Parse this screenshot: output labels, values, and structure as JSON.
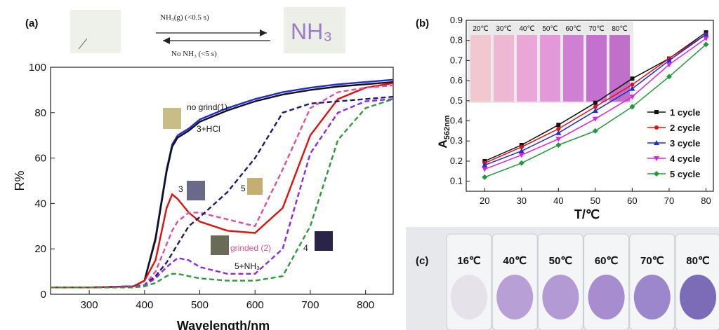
{
  "panels": {
    "a": {
      "label": "(a)",
      "reaction": {
        "forward": "NH₃(g) (<0.5 s)",
        "backward": "No NH₃ (<5 s)",
        "paper_text": "NH₃"
      },
      "chart_data": {
        "type": "line",
        "xlabel": "Wavelength/nm",
        "ylabel": "R%",
        "xlim": [
          230,
          850
        ],
        "ylim": [
          0,
          100
        ],
        "x_ticks": [
          300,
          400,
          500,
          600,
          700,
          800
        ],
        "y_ticks": [
          0,
          20,
          40,
          60,
          80,
          100
        ],
        "x": [
          230,
          300,
          380,
          400,
          420,
          440,
          450,
          460,
          480,
          500,
          550,
          600,
          650,
          700,
          750,
          800,
          850
        ],
        "series": [
          {
            "name": "no grind(1)",
            "color": "#1f2bd6",
            "dash": "solid",
            "values": [
              3,
              3,
              3.5,
              6,
              25,
              55,
              66,
              70,
              73,
              77,
              82,
              86,
              89,
              91,
              92.5,
              93.5,
              94.5
            ]
          },
          {
            "name": "3+HCl",
            "color": "#111111",
            "dash": "solid",
            "values": [
              3,
              3,
              3.5,
              6,
              24,
              54,
              65,
              69,
              72,
              76,
              81,
              85,
              88,
              90,
              91.5,
              92.5,
              93.5
            ]
          },
          {
            "name": "3",
            "color": "#e01010",
            "dash": "solid",
            "values": [
              3,
              3,
              3.5,
              6,
              15,
              38,
              44,
              42,
              36,
              32,
              28,
              27,
              38,
              70,
              86,
              91,
              93
            ]
          },
          {
            "name": "grinded (2)",
            "color": "#e0509a",
            "dash": "dashed",
            "values": [
              3,
              3,
              3.5,
              4,
              10,
              22,
              28,
              32,
              36,
              36,
              33,
              30,
              55,
              82,
              89,
              91,
              92
            ]
          },
          {
            "name": "5",
            "color": "#1a1a6e",
            "dash": "dashed",
            "values": [
              3,
              3,
              3.5,
              4,
              8,
              14,
              18,
              22,
              30,
              34,
              45,
              60,
              80,
              84,
              85,
              86,
              87
            ]
          },
          {
            "name": "5+NH₃",
            "color": "#8a2be2",
            "dash": "dashed",
            "values": [
              3,
              3,
              3.5,
              4,
              7,
              12,
              14,
              16,
              15,
              12,
              9,
              9,
              20,
              62,
              80,
              85,
              86
            ]
          },
          {
            "name": "4",
            "color": "#2e9a3a",
            "dash": "dashed",
            "values": [
              3,
              3,
              3,
              3.5,
              5,
              8,
              9,
              9,
              8,
              7,
              6,
              6,
              8,
              30,
              68,
              82,
              86
            ]
          }
        ],
        "annotations": [
          {
            "text": "no grind(1)",
            "color": "#111111"
          },
          {
            "text": "3+HCl",
            "color": "#111111"
          },
          {
            "text": "3",
            "color": "#111111"
          },
          {
            "text": "5",
            "color": "#111111"
          },
          {
            "text": "grinded (2)",
            "color": "#e0509a"
          },
          {
            "text": "4",
            "color": "#111111"
          },
          {
            "text": "5+NH₃",
            "color": "#111111"
          }
        ]
      }
    },
    "b": {
      "label": "(b)",
      "inset_labels": [
        "20℃",
        "30℃",
        "40℃",
        "50℃",
        "60℃",
        "70℃",
        "80℃"
      ],
      "inset_colors": [
        "#f1c8d0",
        "#efb8d2",
        "#eaa6d6",
        "#e398d8",
        "#cf80d2",
        "#c470d0",
        "#c070c8"
      ],
      "chart_data": {
        "type": "line",
        "xlabel": "T/℃",
        "ylabel": "A",
        "ylabel_sub": "562nm",
        "xlim": [
          15,
          82
        ],
        "ylim": [
          0.05,
          0.9
        ],
        "x_ticks": [
          20,
          30,
          40,
          50,
          60,
          70,
          80
        ],
        "y_ticks": [
          0.1,
          0.2,
          0.3,
          0.4,
          0.5,
          0.6,
          0.7,
          0.8,
          0.9
        ],
        "legend_position": "right",
        "x": [
          20,
          30,
          40,
          50,
          60,
          70,
          80
        ],
        "series": [
          {
            "name": "1 cycle",
            "color": "#111111",
            "marker": "square",
            "values": [
              0.2,
              0.28,
              0.38,
              0.49,
              0.61,
              0.71,
              0.84
            ]
          },
          {
            "name": "2 cycle",
            "color": "#e01010",
            "marker": "circle",
            "values": [
              0.19,
              0.27,
              0.36,
              0.47,
              0.58,
              0.71,
              0.83
            ]
          },
          {
            "name": "3 cycle",
            "color": "#1f2bd6",
            "marker": "triangle",
            "values": [
              0.18,
              0.25,
              0.34,
              0.45,
              0.56,
              0.7,
              0.83
            ]
          },
          {
            "name": "4 cycle",
            "color": "#e020e0",
            "marker": "triangle-down",
            "values": [
              0.16,
              0.23,
              0.31,
              0.41,
              0.52,
              0.68,
              0.81
            ]
          },
          {
            "name": "5 cycle",
            "color": "#1f9a3a",
            "marker": "diamond",
            "values": [
              0.12,
              0.19,
              0.28,
              0.35,
              0.47,
              0.62,
              0.78
            ]
          }
        ]
      }
    },
    "c": {
      "label": "(c)",
      "vials": [
        {
          "temp": "16℃",
          "color": "#e6e2ea"
        },
        {
          "temp": "40℃",
          "color": "#b8a0d6"
        },
        {
          "temp": "50℃",
          "color": "#b49ad4"
        },
        {
          "temp": "60℃",
          "color": "#a88cd0"
        },
        {
          "temp": "70℃",
          "color": "#9c86cc"
        },
        {
          "temp": "80℃",
          "color": "#7c6cb8"
        }
      ]
    }
  }
}
